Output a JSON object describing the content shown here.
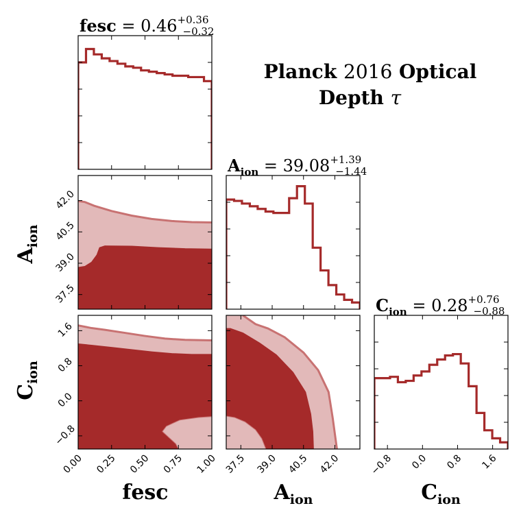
{
  "chart_data": {
    "type": "corner",
    "title_line1_bold": "Planck",
    "title_line1_num": "2016",
    "title_line1_bold2": "Optical",
    "title_line2_bold": "Depth",
    "title_line2_sym": "τ",
    "colors": {
      "dark": "#a52a2a",
      "light": "#e2b9b9",
      "edge": "#c87272"
    },
    "params": [
      {
        "key": "fesc",
        "label_main": "fesc",
        "label_sub": "",
        "summary": {
          "name": "fesc",
          "sub": "",
          "median": "0.46",
          "plus": "+0.36",
          "minus": "−0.32"
        },
        "range": [
          0,
          1
        ],
        "ticks": [
          "0.00",
          "0.25",
          "0.50",
          "0.75",
          "1.00"
        ],
        "tick_values": [
          0,
          0.25,
          0.5,
          0.75,
          1.0
        ]
      },
      {
        "key": "Aion",
        "label_main": "A",
        "label_sub": "ion",
        "summary": {
          "name": "A",
          "sub": "ion",
          "median": "39.08",
          "plus": "+1.39",
          "minus": "−1.44"
        },
        "range": [
          36.8,
          43.2
        ],
        "ticks": [
          "37.5",
          "39.0",
          "40.5",
          "42.0"
        ],
        "tick_values": [
          37.5,
          39.0,
          40.5,
          42.0
        ]
      },
      {
        "key": "Cion",
        "label_main": "C",
        "label_sub": "ion",
        "summary": {
          "name": "C",
          "sub": "ion",
          "median": "0.28",
          "plus": "+0.76",
          "minus": "−0.88"
        },
        "range": [
          -1.1,
          1.95
        ],
        "ticks": [
          "−0.8",
          "0.0",
          "0.8",
          "1.6"
        ],
        "tick_values": [
          -0.8,
          0.0,
          0.8,
          1.6
        ]
      }
    ],
    "histograms": {
      "fesc": [
        0.8,
        0.9,
        0.86,
        0.83,
        0.81,
        0.79,
        0.77,
        0.76,
        0.74,
        0.73,
        0.72,
        0.71,
        0.7,
        0.7,
        0.69,
        0.69,
        0.66
      ],
      "Aion": [
        0.82,
        0.81,
        0.79,
        0.77,
        0.75,
        0.73,
        0.72,
        0.72,
        0.83,
        0.92,
        0.79,
        0.46,
        0.29,
        0.18,
        0.11,
        0.07,
        0.05
      ],
      "Cion": [
        0.53,
        0.53,
        0.54,
        0.5,
        0.51,
        0.55,
        0.58,
        0.63,
        0.67,
        0.7,
        0.71,
        0.64,
        0.47,
        0.27,
        0.14,
        0.08,
        0.05
      ]
    },
    "contours": {
      "Aion_vs_fesc": {
        "outer": [
          [
            0.0,
            41.98
          ],
          [
            0.05,
            41.93
          ],
          [
            0.12,
            41.75
          ],
          [
            0.25,
            41.5
          ],
          [
            0.4,
            41.28
          ],
          [
            0.55,
            41.12
          ],
          [
            0.7,
            41.02
          ],
          [
            0.85,
            40.97
          ],
          [
            1.0,
            40.95
          ]
        ],
        "inner": [
          [
            0.0,
            38.8
          ],
          [
            0.05,
            38.85
          ],
          [
            0.1,
            39.05
          ],
          [
            0.14,
            39.4
          ],
          [
            0.16,
            39.75
          ],
          [
            0.2,
            39.83
          ],
          [
            0.4,
            39.82
          ],
          [
            0.6,
            39.75
          ],
          [
            0.8,
            39.7
          ],
          [
            1.0,
            39.68
          ]
        ]
      },
      "Cion_vs_fesc": {
        "outer": [
          [
            0.0,
            1.72
          ],
          [
            0.1,
            1.66
          ],
          [
            0.2,
            1.62
          ],
          [
            0.35,
            1.55
          ],
          [
            0.5,
            1.48
          ],
          [
            0.65,
            1.42
          ],
          [
            0.8,
            1.39
          ],
          [
            1.0,
            1.38
          ]
        ],
        "inner": [
          [
            0.0,
            1.3
          ],
          [
            0.1,
            1.27
          ],
          [
            0.25,
            1.22
          ],
          [
            0.4,
            1.17
          ],
          [
            0.55,
            1.12
          ],
          [
            0.7,
            1.08
          ],
          [
            0.85,
            1.06
          ],
          [
            1.0,
            1.06
          ]
        ],
        "hole": [
          [
            0.75,
            -1.1
          ],
          [
            0.73,
            -0.98
          ],
          [
            0.63,
            -0.7
          ],
          [
            0.66,
            -0.58
          ],
          [
            0.76,
            -0.44
          ],
          [
            0.9,
            -0.38
          ],
          [
            1.0,
            -0.36
          ],
          [
            1.0,
            -1.1
          ]
        ]
      },
      "Cion_vs_Aion": {
        "outer": [
          [
            37.6,
            1.95
          ],
          [
            38.2,
            1.75
          ],
          [
            38.8,
            1.65
          ],
          [
            39.6,
            1.45
          ],
          [
            40.5,
            1.1
          ],
          [
            41.2,
            0.7
          ],
          [
            41.7,
            0.2
          ],
          [
            41.9,
            -0.4
          ],
          [
            42.1,
            -1.1
          ]
        ],
        "inner": [
          [
            37.0,
            1.65
          ],
          [
            37.6,
            1.55
          ],
          [
            38.4,
            1.32
          ],
          [
            39.2,
            1.05
          ],
          [
            40.0,
            0.65
          ],
          [
            40.6,
            0.2
          ],
          [
            40.85,
            -0.3
          ],
          [
            40.95,
            -0.7
          ],
          [
            40.98,
            -1.1
          ]
        ],
        "hole": [
          [
            36.8,
            -0.35
          ],
          [
            37.2,
            -0.38
          ],
          [
            37.7,
            -0.48
          ],
          [
            38.2,
            -0.66
          ],
          [
            38.5,
            -0.86
          ],
          [
            38.7,
            -1.1
          ],
          [
            36.8,
            -1.1
          ]
        ]
      }
    }
  }
}
